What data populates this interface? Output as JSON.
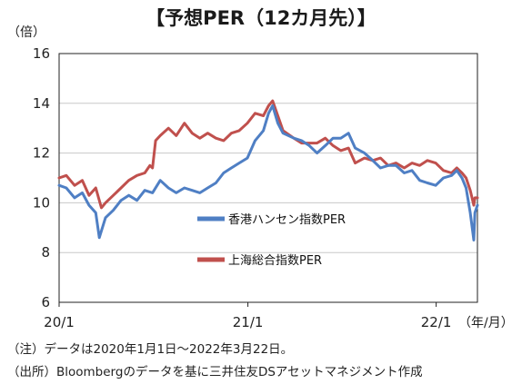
{
  "chart_data": {
    "type": "line",
    "title": "【予想PER（12カ月先）】",
    "y_unit": "（倍）",
    "x_unit": "（年/月）",
    "ylim": [
      6,
      16
    ],
    "yticks": [
      "16",
      "14",
      "12",
      "10",
      "8",
      "6"
    ],
    "xticks": [
      "20/1",
      "21/1",
      "22/1"
    ],
    "x_range": [
      "2020-01-01",
      "2022-03-22"
    ],
    "grid": true,
    "legend_placement": "center",
    "series": [
      {
        "name": "香港ハンセン指数PER",
        "color": "#4f7fc4",
        "points": [
          [
            "2020-01-01",
            10.7
          ],
          [
            "2020-01-15",
            10.6
          ],
          [
            "2020-01-31",
            10.2
          ],
          [
            "2020-02-15",
            10.4
          ],
          [
            "2020-02-28",
            9.9
          ],
          [
            "2020-03-12",
            9.6
          ],
          [
            "2020-03-19",
            8.6
          ],
          [
            "2020-03-31",
            9.4
          ],
          [
            "2020-04-15",
            9.7
          ],
          [
            "2020-04-30",
            10.1
          ],
          [
            "2020-05-15",
            10.3
          ],
          [
            "2020-05-31",
            10.1
          ],
          [
            "2020-06-15",
            10.5
          ],
          [
            "2020-06-30",
            10.4
          ],
          [
            "2020-07-15",
            10.9
          ],
          [
            "2020-07-31",
            10.6
          ],
          [
            "2020-08-15",
            10.4
          ],
          [
            "2020-08-31",
            10.6
          ],
          [
            "2020-09-15",
            10.5
          ],
          [
            "2020-09-30",
            10.4
          ],
          [
            "2020-10-15",
            10.6
          ],
          [
            "2020-10-31",
            10.8
          ],
          [
            "2020-11-15",
            11.2
          ],
          [
            "2020-11-30",
            11.4
          ],
          [
            "2020-12-15",
            11.6
          ],
          [
            "2020-12-31",
            11.8
          ],
          [
            "2021-01-15",
            12.5
          ],
          [
            "2021-01-31",
            12.9
          ],
          [
            "2021-02-10",
            13.6
          ],
          [
            "2021-02-18",
            13.9
          ],
          [
            "2021-02-28",
            13.2
          ],
          [
            "2021-03-10",
            12.8
          ],
          [
            "2021-03-31",
            12.6
          ],
          [
            "2021-04-15",
            12.5
          ],
          [
            "2021-04-30",
            12.3
          ],
          [
            "2021-05-15",
            12.0
          ],
          [
            "2021-05-31",
            12.3
          ],
          [
            "2021-06-15",
            12.6
          ],
          [
            "2021-06-30",
            12.6
          ],
          [
            "2021-07-15",
            12.8
          ],
          [
            "2021-07-28",
            12.2
          ],
          [
            "2021-08-15",
            12.0
          ],
          [
            "2021-08-31",
            11.7
          ],
          [
            "2021-09-15",
            11.4
          ],
          [
            "2021-09-30",
            11.5
          ],
          [
            "2021-10-15",
            11.5
          ],
          [
            "2021-10-31",
            11.2
          ],
          [
            "2021-11-15",
            11.3
          ],
          [
            "2021-11-30",
            10.9
          ],
          [
            "2021-12-15",
            10.8
          ],
          [
            "2021-12-31",
            10.7
          ],
          [
            "2022-01-15",
            11.0
          ],
          [
            "2022-01-31",
            11.1
          ],
          [
            "2022-02-10",
            11.3
          ],
          [
            "2022-02-20",
            11.0
          ],
          [
            "2022-02-28",
            10.6
          ],
          [
            "2022-03-08",
            9.6
          ],
          [
            "2022-03-15",
            8.5
          ],
          [
            "2022-03-17",
            9.6
          ],
          [
            "2022-03-22",
            9.9
          ]
        ]
      },
      {
        "name": "上海総合指数PER",
        "color": "#c0504d",
        "points": [
          [
            "2020-01-01",
            11.0
          ],
          [
            "2020-01-15",
            11.1
          ],
          [
            "2020-01-31",
            10.7
          ],
          [
            "2020-02-15",
            10.9
          ],
          [
            "2020-02-28",
            10.3
          ],
          [
            "2020-03-12",
            10.6
          ],
          [
            "2020-03-23",
            9.8
          ],
          [
            "2020-03-31",
            10.0
          ],
          [
            "2020-04-15",
            10.3
          ],
          [
            "2020-04-30",
            10.6
          ],
          [
            "2020-05-15",
            10.9
          ],
          [
            "2020-05-31",
            11.1
          ],
          [
            "2020-06-15",
            11.2
          ],
          [
            "2020-06-25",
            11.5
          ],
          [
            "2020-06-30",
            11.4
          ],
          [
            "2020-07-06",
            12.5
          ],
          [
            "2020-07-15",
            12.7
          ],
          [
            "2020-07-31",
            13.0
          ],
          [
            "2020-08-15",
            12.7
          ],
          [
            "2020-08-31",
            13.2
          ],
          [
            "2020-09-15",
            12.8
          ],
          [
            "2020-09-30",
            12.6
          ],
          [
            "2020-10-15",
            12.8
          ],
          [
            "2020-10-31",
            12.6
          ],
          [
            "2020-11-15",
            12.5
          ],
          [
            "2020-11-30",
            12.8
          ],
          [
            "2020-12-15",
            12.9
          ],
          [
            "2020-12-31",
            13.2
          ],
          [
            "2021-01-15",
            13.6
          ],
          [
            "2021-01-31",
            13.5
          ],
          [
            "2021-02-10",
            13.9
          ],
          [
            "2021-02-18",
            14.1
          ],
          [
            "2021-02-28",
            13.5
          ],
          [
            "2021-03-10",
            12.9
          ],
          [
            "2021-03-31",
            12.6
          ],
          [
            "2021-04-15",
            12.4
          ],
          [
            "2021-04-30",
            12.4
          ],
          [
            "2021-05-15",
            12.4
          ],
          [
            "2021-05-31",
            12.6
          ],
          [
            "2021-06-15",
            12.3
          ],
          [
            "2021-06-30",
            12.1
          ],
          [
            "2021-07-15",
            12.2
          ],
          [
            "2021-07-28",
            11.6
          ],
          [
            "2021-08-15",
            11.8
          ],
          [
            "2021-08-31",
            11.7
          ],
          [
            "2021-09-15",
            11.8
          ],
          [
            "2021-09-30",
            11.5
          ],
          [
            "2021-10-15",
            11.6
          ],
          [
            "2021-10-31",
            11.4
          ],
          [
            "2021-11-15",
            11.6
          ],
          [
            "2021-11-30",
            11.5
          ],
          [
            "2021-12-15",
            11.7
          ],
          [
            "2021-12-31",
            11.6
          ],
          [
            "2022-01-15",
            11.3
          ],
          [
            "2022-01-31",
            11.2
          ],
          [
            "2022-02-10",
            11.4
          ],
          [
            "2022-02-20",
            11.2
          ],
          [
            "2022-02-28",
            11.0
          ],
          [
            "2022-03-08",
            10.5
          ],
          [
            "2022-03-15",
            9.9
          ],
          [
            "2022-03-17",
            10.2
          ],
          [
            "2022-03-22",
            10.2
          ]
        ]
      }
    ]
  },
  "notes": [
    "（注）データは2020年1月1日～2022年3月22日。",
    "（出所）Bloombergのデータを基に三井住友DSアセットマネジメント作成"
  ]
}
